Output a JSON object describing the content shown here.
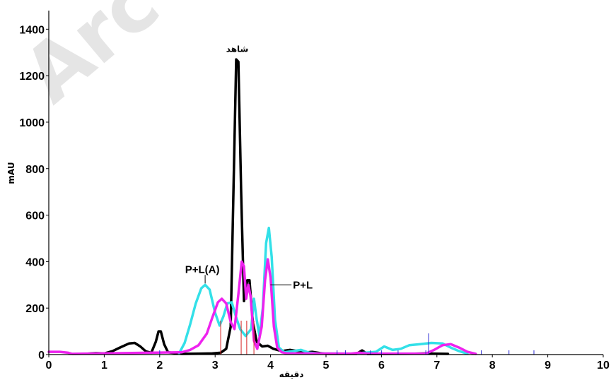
{
  "chart_data": {
    "type": "line",
    "watermark": "Arc",
    "xlabel": "دقیقه",
    "ylabel": "mAU",
    "xlim": [
      0,
      10
    ],
    "ylim": [
      0,
      1480
    ],
    "x_ticks": [
      0,
      1,
      2,
      3,
      4,
      5,
      6,
      7,
      8,
      9,
      10
    ],
    "y_ticks": [
      0,
      200,
      400,
      600,
      800,
      1000,
      1200,
      1400
    ],
    "grid": false,
    "series": [
      {
        "name": "شاهد",
        "color": "#000000",
        "points": [
          [
            0.7,
            4
          ],
          [
            0.85,
            6
          ],
          [
            1.0,
            5
          ],
          [
            1.15,
            15
          ],
          [
            1.3,
            32
          ],
          [
            1.45,
            48
          ],
          [
            1.55,
            50
          ],
          [
            1.65,
            35
          ],
          [
            1.75,
            14
          ],
          [
            1.85,
            8
          ],
          [
            1.93,
            55
          ],
          [
            1.98,
            100
          ],
          [
            2.02,
            100
          ],
          [
            2.08,
            45
          ],
          [
            2.15,
            10
          ],
          [
            2.4,
            3
          ],
          [
            2.7,
            4
          ],
          [
            2.95,
            5
          ],
          [
            3.1,
            8
          ],
          [
            3.2,
            25
          ],
          [
            3.28,
            120
          ],
          [
            3.33,
            700
          ],
          [
            3.38,
            1270
          ],
          [
            3.42,
            1260
          ],
          [
            3.47,
            700
          ],
          [
            3.52,
            230
          ],
          [
            3.58,
            320
          ],
          [
            3.62,
            320
          ],
          [
            3.68,
            140
          ],
          [
            3.75,
            55
          ],
          [
            3.85,
            35
          ],
          [
            3.95,
            38
          ],
          [
            4.05,
            25
          ],
          [
            4.2,
            15
          ],
          [
            4.35,
            20
          ],
          [
            4.5,
            15
          ],
          [
            4.6,
            8
          ],
          [
            4.75,
            12
          ],
          [
            4.9,
            6
          ],
          [
            5.0,
            3
          ],
          [
            5.55,
            3
          ],
          [
            5.65,
            18
          ],
          [
            5.7,
            10
          ],
          [
            5.75,
            2
          ],
          [
            6.6,
            4
          ],
          [
            6.8,
            5
          ],
          [
            6.95,
            4
          ],
          [
            7.2,
            3
          ]
        ]
      },
      {
        "name": "P+L(A)",
        "color": "#33e0e8",
        "points": [
          [
            2.35,
            5
          ],
          [
            2.45,
            50
          ],
          [
            2.55,
            130
          ],
          [
            2.65,
            220
          ],
          [
            2.75,
            285
          ],
          [
            2.82,
            300
          ],
          [
            2.9,
            280
          ],
          [
            3.0,
            180
          ],
          [
            3.08,
            125
          ],
          [
            3.15,
            165
          ],
          [
            3.22,
            220
          ],
          [
            3.3,
            225
          ],
          [
            3.38,
            160
          ],
          [
            3.45,
            110
          ],
          [
            3.55,
            80
          ],
          [
            3.65,
            110
          ],
          [
            3.7,
            240
          ],
          [
            3.75,
            150
          ],
          [
            3.8,
            80
          ],
          [
            3.86,
            200
          ],
          [
            3.92,
            480
          ],
          [
            3.97,
            545
          ],
          [
            4.02,
            420
          ],
          [
            4.08,
            150
          ],
          [
            4.15,
            30
          ],
          [
            4.25,
            10
          ],
          [
            4.4,
            15
          ],
          [
            4.55,
            20
          ],
          [
            4.7,
            8
          ],
          [
            4.85,
            5
          ],
          [
            5.5,
            4
          ],
          [
            5.7,
            8
          ],
          [
            5.9,
            12
          ],
          [
            6.05,
            35
          ],
          [
            6.2,
            20
          ],
          [
            6.35,
            25
          ],
          [
            6.5,
            40
          ],
          [
            6.7,
            45
          ],
          [
            6.9,
            50
          ],
          [
            7.1,
            48
          ],
          [
            7.25,
            30
          ],
          [
            7.4,
            15
          ],
          [
            7.55,
            4
          ]
        ]
      },
      {
        "name": "P+L",
        "color": "#ee22ee",
        "points": [
          [
            0.0,
            12
          ],
          [
            0.2,
            12
          ],
          [
            0.35,
            8
          ],
          [
            0.42,
            3
          ],
          [
            2.4,
            10
          ],
          [
            2.55,
            20
          ],
          [
            2.7,
            40
          ],
          [
            2.85,
            90
          ],
          [
            2.95,
            160
          ],
          [
            3.05,
            225
          ],
          [
            3.12,
            240
          ],
          [
            3.2,
            220
          ],
          [
            3.28,
            140
          ],
          [
            3.35,
            110
          ],
          [
            3.42,
            260
          ],
          [
            3.48,
            400
          ],
          [
            3.52,
            380
          ],
          [
            3.56,
            240
          ],
          [
            3.6,
            300
          ],
          [
            3.64,
            250
          ],
          [
            3.7,
            60
          ],
          [
            3.76,
            25
          ],
          [
            3.84,
            120
          ],
          [
            3.9,
            320
          ],
          [
            3.95,
            410
          ],
          [
            4.0,
            330
          ],
          [
            4.06,
            120
          ],
          [
            4.12,
            30
          ],
          [
            4.2,
            10
          ],
          [
            4.3,
            5
          ],
          [
            5.45,
            4
          ],
          [
            5.6,
            8
          ],
          [
            5.75,
            4
          ],
          [
            6.8,
            4
          ],
          [
            6.95,
            20
          ],
          [
            7.1,
            40
          ],
          [
            7.25,
            45
          ],
          [
            7.4,
            30
          ],
          [
            7.55,
            12
          ],
          [
            7.7,
            3
          ]
        ]
      }
    ],
    "annotations": [
      {
        "text": "شاهد",
        "x": 3.4,
        "y": 1290
      },
      {
        "text": "P+L(A)",
        "x": 2.82,
        "y": 300
      },
      {
        "text": "P+L",
        "x": 3.97,
        "y": 300
      }
    ],
    "peak_markers": {
      "red": [
        3.1,
        3.47,
        3.57,
        3.7
      ],
      "blue": [
        2.0,
        5.2,
        5.35,
        5.8,
        6.0,
        6.3,
        6.8,
        7.8,
        8.3,
        8.75
      ],
      "blue_tall": [
        6.85
      ]
    }
  }
}
